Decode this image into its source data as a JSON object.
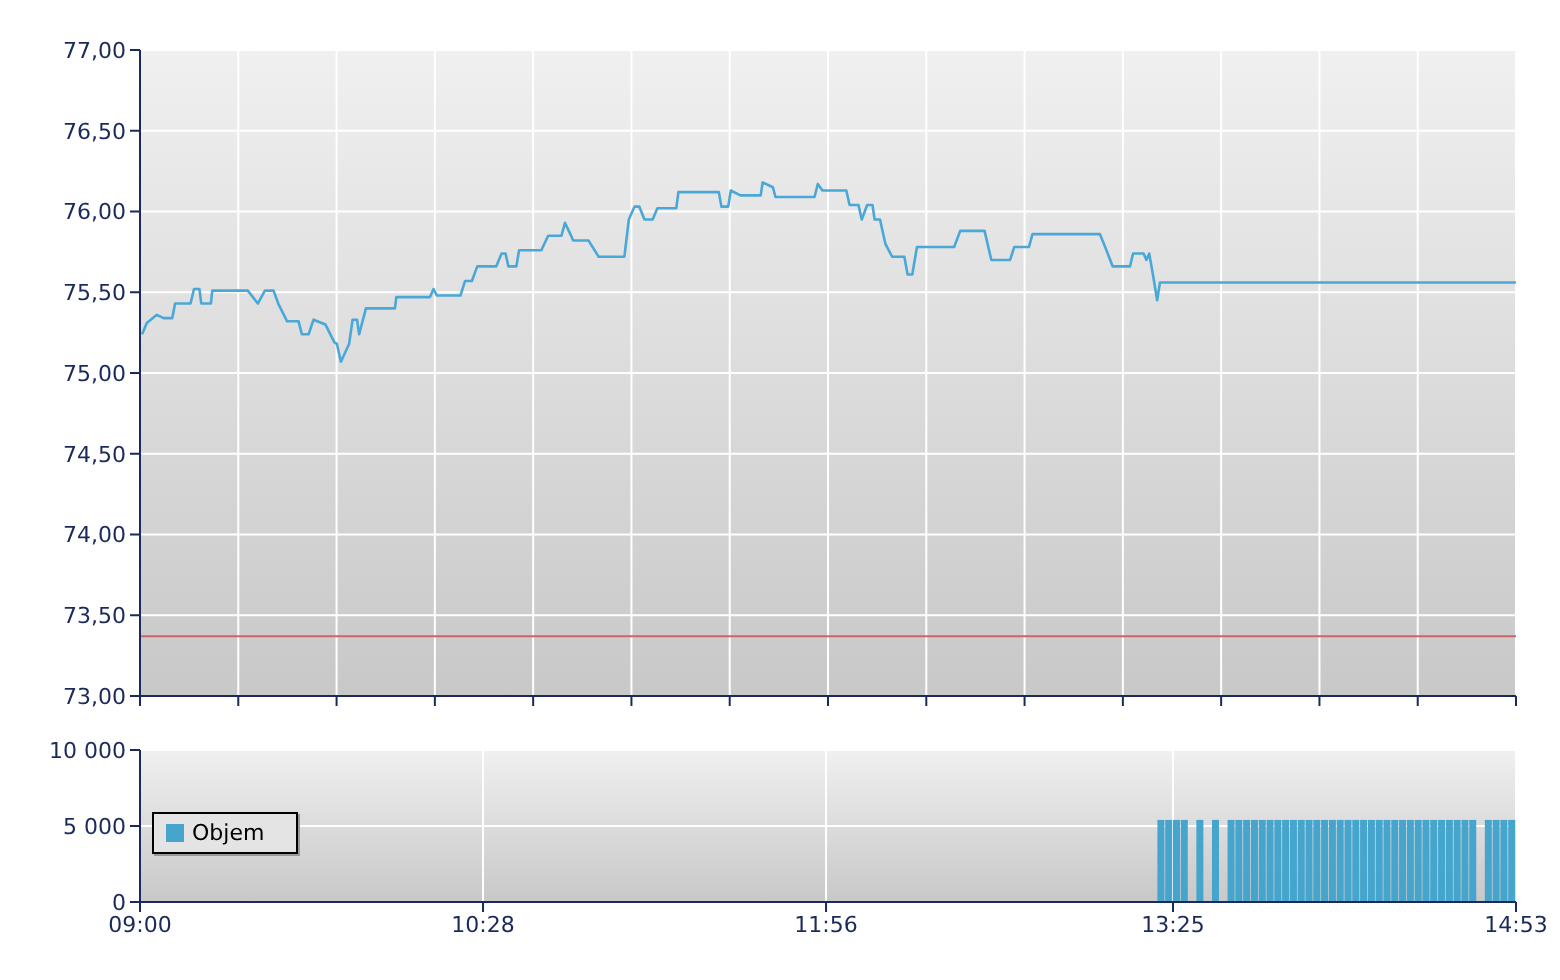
{
  "chart_data": [
    {
      "type": "line",
      "series": [
        {
          "color": "#4aa8d8",
          "x": [
            9.009,
            9.029,
            9.072,
            9.101,
            9.138,
            9.15,
            9.216,
            9.231,
            9.254,
            9.262,
            9.303,
            9.309,
            9.461,
            9.504,
            9.534,
            9.571,
            9.591,
            9.629,
            9.678,
            9.692,
            9.721,
            9.742,
            9.793,
            9.831,
            9.842,
            9.859,
            9.894,
            9.909,
            9.928,
            9.937,
            9.966,
            10.09,
            10.096,
            10.24,
            10.255,
            10.269,
            10.37,
            10.39,
            10.419,
            10.442,
            10.523,
            10.546,
            10.563,
            10.575,
            10.609,
            10.621,
            10.716,
            10.745,
            10.802,
            10.817,
            10.84,
            10.852,
            10.918,
            10.961,
            11.071,
            11.09,
            11.114,
            11.135,
            11.157,
            11.192,
            11.212,
            11.293,
            11.302,
            11.475,
            11.486,
            11.515,
            11.526,
            11.567,
            11.654,
            11.662,
            11.706,
            11.717,
            11.884,
            11.898,
            11.918,
            12.02,
            12.034,
            12.072,
            12.086,
            12.109,
            12.132,
            12.141,
            12.164,
            12.187,
            12.216,
            12.268,
            12.282,
            12.302,
            12.322,
            12.481,
            12.507,
            12.611,
            12.64,
            12.72,
            12.738,
            12.801,
            12.816,
            13.104,
            13.124,
            13.159,
            13.233,
            13.246,
            13.291,
            13.303,
            13.315,
            13.332,
            13.349,
            13.361,
            14.883
          ],
          "values": [
            75.24,
            75.31,
            75.36,
            75.34,
            75.34,
            75.43,
            75.43,
            75.52,
            75.52,
            75.43,
            75.43,
            75.51,
            75.51,
            75.43,
            75.51,
            75.51,
            75.43,
            75.32,
            75.32,
            75.24,
            75.24,
            75.33,
            75.3,
            75.19,
            75.18,
            75.07,
            75.18,
            75.33,
            75.33,
            75.24,
            75.4,
            75.4,
            75.47,
            75.47,
            75.52,
            75.48,
            75.48,
            75.57,
            75.57,
            75.66,
            75.66,
            75.74,
            75.74,
            75.66,
            75.66,
            75.76,
            75.76,
            75.85,
            75.85,
            75.93,
            75.86,
            75.82,
            75.82,
            75.72,
            75.72,
            75.95,
            76.03,
            76.03,
            75.95,
            75.95,
            76.02,
            76.02,
            76.12,
            76.12,
            76.03,
            76.03,
            76.13,
            76.1,
            76.1,
            76.18,
            76.15,
            76.09,
            76.09,
            76.17,
            76.13,
            76.13,
            76.04,
            76.04,
            75.95,
            76.04,
            76.04,
            75.95,
            75.95,
            75.8,
            75.72,
            75.72,
            75.61,
            75.61,
            75.78,
            75.78,
            75.88,
            75.88,
            75.7,
            75.7,
            75.78,
            75.78,
            75.86,
            75.86,
            75.79,
            75.66,
            75.66,
            75.74,
            75.74,
            75.7,
            75.74,
            75.6,
            75.45,
            75.56,
            75.56
          ]
        }
      ],
      "xlim": [
        9,
        14.8833
      ],
      "xticks": [
        {
          "value": 9,
          "label": null
        },
        {
          "value": 9.4202,
          "label": null
        },
        {
          "value": 9.8405,
          "label": null
        },
        {
          "value": 10.2607,
          "label": null
        },
        {
          "value": 10.681,
          "label": null
        },
        {
          "value": 11.1012,
          "label": null
        },
        {
          "value": 11.5214,
          "label": null
        },
        {
          "value": 11.9417,
          "label": null
        },
        {
          "value": 12.3619,
          "label": null
        },
        {
          "value": 12.7821,
          "label": null
        },
        {
          "value": 13.2024,
          "label": null
        },
        {
          "value": 13.6226,
          "label": null
        },
        {
          "value": 14.0429,
          "label": null
        },
        {
          "value": 14.4631,
          "label": null
        },
        {
          "value": 14.8833,
          "label": null
        }
      ],
      "ylim": [
        73,
        77
      ],
      "yticks": [
        {
          "value": 73,
          "label": "73,00"
        },
        {
          "value": 73.5,
          "label": "73,50"
        },
        {
          "value": 74,
          "label": "74,00"
        },
        {
          "value": 74.5,
          "label": "74,50"
        },
        {
          "value": 75,
          "label": "75,00"
        },
        {
          "value": 75.5,
          "label": "75,50"
        },
        {
          "value": 76,
          "label": "76,00"
        },
        {
          "value": 76.5,
          "label": "76,50"
        },
        {
          "value": 77,
          "label": "77,00"
        }
      ],
      "ref_lines": [
        {
          "axis": "y",
          "value": 73.37,
          "color": "#cc6666"
        }
      ],
      "grid": true,
      "tick_labels": "y"
    },
    {
      "type": "bar",
      "series": [
        {
          "name": "Objem",
          "color": "#45a5cc",
          "x": [
            13.3667,
            13.4,
            13.4333,
            13.4667,
            13.5,
            13.5333,
            13.5667,
            13.6,
            13.6333,
            13.6667,
            13.7,
            13.7333,
            13.7667,
            13.8,
            13.8333,
            13.8667,
            13.9,
            13.9333,
            13.9667,
            14,
            14.0333,
            14.0667,
            14.1,
            14.1333,
            14.1667,
            14.2,
            14.2333,
            14.2667,
            14.3,
            14.3333,
            14.3667,
            14.4,
            14.4333,
            14.4667,
            14.5,
            14.5333,
            14.5667,
            14.6,
            14.6333,
            14.6667,
            14.7,
            14.7333,
            14.7667,
            14.8,
            14.8333,
            14.8667
          ],
          "values": [
            5400,
            5400,
            5400,
            5400,
            null,
            5400,
            null,
            5400,
            null,
            5400,
            5400,
            5400,
            5400,
            5400,
            5400,
            5400,
            5400,
            5400,
            5400,
            5400,
            5400,
            5400,
            5400,
            5400,
            5400,
            5400,
            5400,
            5400,
            5400,
            5400,
            5400,
            5400,
            5400,
            5400,
            5400,
            5400,
            5400,
            5400,
            5400,
            5400,
            5400,
            null,
            5400,
            5400,
            5400,
            5400
          ]
        }
      ],
      "xlim": [
        9,
        14.8833
      ],
      "xticks": [
        {
          "value": 9,
          "label": "09:00"
        },
        {
          "value": 10.4667,
          "label": "10:28"
        },
        {
          "value": 11.9333,
          "label": "11:56"
        },
        {
          "value": 13.4167,
          "label": "13:25"
        },
        {
          "value": 14.8833,
          "label": "14:53"
        }
      ],
      "ylim": [
        0,
        10000
      ],
      "yticks": [
        0,
        {
          "value": 5000,
          "label": "5 000"
        },
        {
          "value": 10000,
          "label": "10 000"
        }
      ],
      "grid": true,
      "legend": "left"
    }
  ]
}
